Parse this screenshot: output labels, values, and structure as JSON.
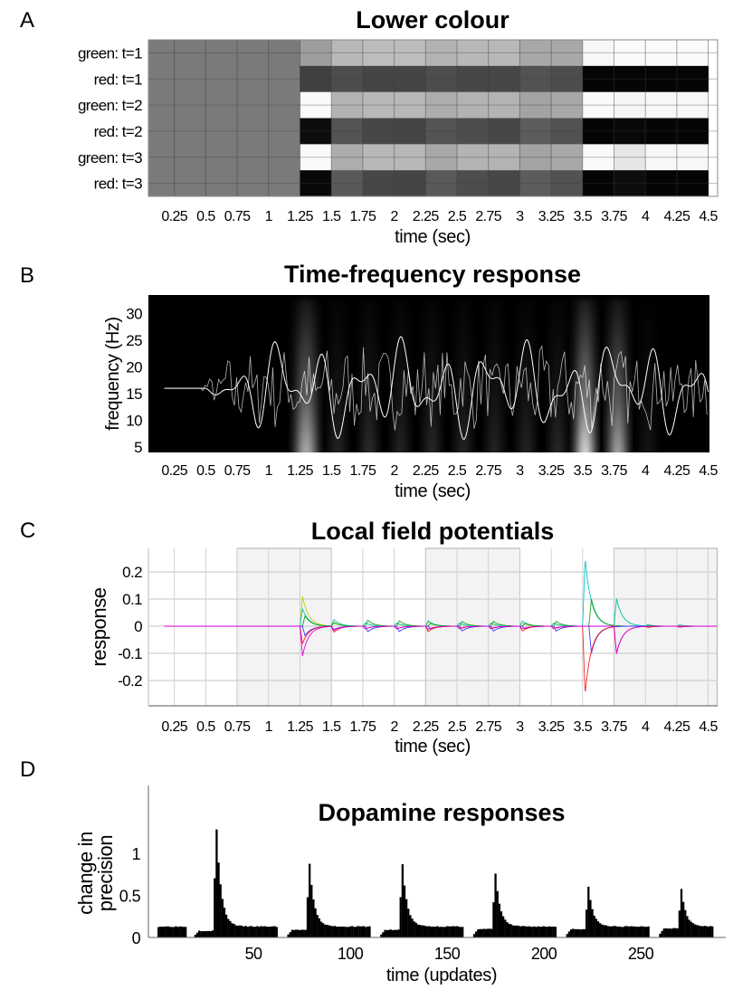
{
  "panels": [
    {
      "letter": "A"
    },
    {
      "letter": "B"
    },
    {
      "letter": "C"
    },
    {
      "letter": "D"
    }
  ],
  "chart_data": [
    {
      "panel": "A",
      "type": "heatmap",
      "title": "Lower colour",
      "xlabel": "time (sec)",
      "xlim": [
        0.17,
        4.57
      ],
      "xticks": [
        0.25,
        0.5,
        0.75,
        1,
        1.25,
        1.5,
        1.75,
        2,
        2.25,
        2.5,
        2.75,
        3,
        3.25,
        3.5,
        3.75,
        4,
        4.25,
        4.5
      ],
      "xtick_labels": [
        "0.25",
        "0.5",
        "0.75",
        "1",
        "1.25",
        "1.5",
        "1.75",
        "2",
        "2.25",
        "2.5",
        "2.75",
        "3",
        "3.25",
        "3.5",
        "3.75",
        "4",
        "4.25",
        "4.5"
      ],
      "bin_width_sec": 0.25,
      "rows": [
        "green: t=1",
        "red: t=1",
        "green: t=2",
        "red: t=2",
        "green: t=3",
        "red: t=3"
      ],
      "values": [
        [
          0.48,
          0.48,
          0.48,
          0.48,
          0.48,
          0.62,
          0.72,
          0.74,
          0.74,
          0.7,
          0.72,
          0.72,
          0.66,
          0.66,
          0.97,
          0.98,
          0.98,
          0.98
        ],
        [
          0.48,
          0.48,
          0.48,
          0.48,
          0.48,
          0.25,
          0.3,
          0.27,
          0.27,
          0.3,
          0.28,
          0.28,
          0.32,
          0.3,
          0.02,
          0.02,
          0.02,
          0.02
        ],
        [
          0.48,
          0.48,
          0.48,
          0.48,
          0.48,
          0.98,
          0.7,
          0.72,
          0.72,
          0.68,
          0.7,
          0.7,
          0.64,
          0.66,
          0.98,
          0.96,
          0.97,
          0.97
        ],
        [
          0.48,
          0.48,
          0.48,
          0.48,
          0.48,
          0.05,
          0.33,
          0.28,
          0.27,
          0.33,
          0.3,
          0.28,
          0.36,
          0.32,
          0.02,
          0.03,
          0.02,
          0.02
        ],
        [
          0.48,
          0.48,
          0.48,
          0.48,
          0.48,
          0.98,
          0.68,
          0.72,
          0.72,
          0.66,
          0.7,
          0.7,
          0.64,
          0.66,
          0.98,
          0.9,
          0.97,
          0.97
        ],
        [
          0.48,
          0.48,
          0.48,
          0.48,
          0.48,
          0.03,
          0.35,
          0.28,
          0.27,
          0.35,
          0.3,
          0.28,
          0.36,
          0.32,
          0.02,
          0.05,
          0.02,
          0.02
        ]
      ]
    },
    {
      "panel": "B",
      "type": "heatmap",
      "title": "Time-frequency response",
      "xlabel": "time (sec)",
      "ylabel": "frequency (Hz)",
      "xlim": [
        0.17,
        4.5
      ],
      "ylim": [
        3,
        33
      ],
      "yticks": [
        5,
        10,
        15,
        20,
        25,
        30
      ],
      "xticks": [
        0.25,
        0.5,
        0.75,
        1,
        1.25,
        1.5,
        1.75,
        2,
        2.25,
        2.5,
        2.75,
        3,
        3.25,
        3.5,
        3.75,
        4,
        4.25,
        4.5
      ],
      "xtick_labels": [
        "0.25",
        "0.5",
        "0.75",
        "1",
        "1.25",
        "1.5",
        "1.75",
        "2",
        "2.25",
        "2.5",
        "2.75",
        "3",
        "3.25",
        "3.5",
        "3.75",
        "4",
        "4.25",
        "4.5"
      ],
      "power_blobs": [
        {
          "t": 1.3,
          "intensity": 0.75,
          "spread": 0.07
        },
        {
          "t": 1.55,
          "intensity": 0.18,
          "spread": 0.05
        },
        {
          "t": 1.8,
          "intensity": 0.22,
          "spread": 0.05
        },
        {
          "t": 2.05,
          "intensity": 0.18,
          "spread": 0.05
        },
        {
          "t": 2.3,
          "intensity": 0.2,
          "spread": 0.05
        },
        {
          "t": 2.55,
          "intensity": 0.18,
          "spread": 0.05
        },
        {
          "t": 2.8,
          "intensity": 0.18,
          "spread": 0.05
        },
        {
          "t": 3.05,
          "intensity": 0.18,
          "spread": 0.05
        },
        {
          "t": 3.3,
          "intensity": 0.2,
          "spread": 0.05
        },
        {
          "t": 3.52,
          "intensity": 1.0,
          "spread": 0.06
        },
        {
          "t": 3.78,
          "intensity": 0.75,
          "spread": 0.06
        },
        {
          "t": 4.02,
          "intensity": 0.1,
          "spread": 0.05
        }
      ],
      "overlay_baseline_hz": 16
    },
    {
      "panel": "C",
      "type": "line",
      "title": "Local field potentials",
      "xlabel": "time (sec)",
      "ylabel": "response",
      "xlim": [
        0.17,
        4.57
      ],
      "ylim": [
        -0.28,
        0.28
      ],
      "yticks": [
        -0.2,
        -0.1,
        0,
        0.1,
        0.2
      ],
      "ytick_labels": [
        "-0.2",
        "-0.1",
        "0",
        "0.1",
        "0.2"
      ],
      "xticks": [
        0.25,
        0.5,
        0.75,
        1,
        1.25,
        1.5,
        1.75,
        2,
        2.25,
        2.5,
        2.75,
        3,
        3.25,
        3.5,
        3.75,
        4,
        4.25,
        4.5
      ],
      "xtick_labels": [
        "0.25",
        "0.5",
        "0.75",
        "1",
        "1.25",
        "1.5",
        "1.75",
        "2",
        "2.25",
        "2.5",
        "2.75",
        "3",
        "3.25",
        "3.5",
        "3.75",
        "4",
        "4.25",
        "4.5"
      ],
      "shaded_intervals": [
        [
          0.75,
          1.5
        ],
        [
          2.25,
          3.0
        ],
        [
          3.75,
          4.57
        ]
      ],
      "series": [
        {
          "name": "yellow",
          "color": "#cccc00",
          "events": [
            [
              1.25,
              0.11
            ],
            [
              1.5,
              0.015
            ],
            [
              1.75,
              0.012
            ],
            [
              2.0,
              0.01
            ],
            [
              2.25,
              0.015
            ],
            [
              2.5,
              0.01
            ],
            [
              2.75,
              0.01
            ],
            [
              3.0,
              0.012
            ],
            [
              3.25,
              0.01
            ],
            [
              3.75,
              0.1
            ],
            [
              4.0,
              0.004
            ],
            [
              4.25,
              0.004
            ]
          ]
        },
        {
          "name": "cyan",
          "color": "#00c8c8",
          "events": [
            [
              1.25,
              0.065
            ],
            [
              1.5,
              0.025
            ],
            [
              1.75,
              0.012
            ],
            [
              2.0,
              0.012
            ],
            [
              2.25,
              0.02
            ],
            [
              2.5,
              0.012
            ],
            [
              2.75,
              0.012
            ],
            [
              3.0,
              0.02
            ],
            [
              3.25,
              0.012
            ],
            [
              3.5,
              0.25
            ],
            [
              3.75,
              0.1
            ],
            [
              4.0,
              0.005
            ],
            [
              4.25,
              0.005
            ]
          ]
        },
        {
          "name": "green",
          "color": "#20a020",
          "events": [
            [
              1.27,
              0.038
            ],
            [
              1.5,
              0.012
            ],
            [
              1.77,
              0.022
            ],
            [
              2.02,
              0.02
            ],
            [
              2.27,
              0.01
            ],
            [
              2.52,
              0.018
            ],
            [
              2.77,
              0.018
            ],
            [
              3.02,
              0.01
            ],
            [
              3.27,
              0.018
            ],
            [
              3.55,
              0.1
            ],
            [
              4.0,
              0.003
            ]
          ]
        },
        {
          "name": "blue",
          "color": "#3a3aff",
          "events": [
            [
              1.27,
              -0.035
            ],
            [
              1.5,
              -0.012
            ],
            [
              1.77,
              -0.02
            ],
            [
              2.02,
              -0.02
            ],
            [
              2.27,
              -0.01
            ],
            [
              2.52,
              -0.018
            ],
            [
              2.77,
              -0.018
            ],
            [
              3.02,
              -0.01
            ],
            [
              3.27,
              -0.018
            ],
            [
              3.55,
              -0.1
            ],
            [
              4.0,
              -0.004
            ],
            [
              4.25,
              -0.004
            ]
          ]
        },
        {
          "name": "red",
          "color": "#ff2020",
          "events": [
            [
              1.25,
              -0.065
            ],
            [
              1.5,
              -0.022
            ],
            [
              1.75,
              -0.01
            ],
            [
              2.0,
              -0.01
            ],
            [
              2.25,
              -0.02
            ],
            [
              2.5,
              -0.01
            ],
            [
              2.75,
              -0.01
            ],
            [
              3.0,
              -0.018
            ],
            [
              3.25,
              -0.01
            ],
            [
              3.5,
              -0.25
            ],
            [
              3.75,
              -0.1
            ],
            [
              4.0,
              -0.004
            ]
          ]
        },
        {
          "name": "magenta",
          "color": "#e000e0",
          "events": [
            [
              1.25,
              -0.11
            ],
            [
              1.5,
              -0.015
            ],
            [
              1.75,
              -0.01
            ],
            [
              2.0,
              -0.01
            ],
            [
              2.25,
              -0.012
            ],
            [
              2.5,
              -0.008
            ],
            [
              2.75,
              -0.008
            ],
            [
              3.0,
              -0.01
            ],
            [
              3.25,
              -0.008
            ],
            [
              3.75,
              -0.1
            ],
            [
              4.25,
              -0.004
            ]
          ]
        }
      ]
    },
    {
      "panel": "D",
      "type": "bar",
      "title": "Dopamine responses",
      "xlabel": "time (updates)",
      "ylabel": [
        "change in",
        "precision"
      ],
      "xlim": [
        0,
        288
      ],
      "ylim": [
        0,
        1.35
      ],
      "xticks": [
        50,
        100,
        150,
        200,
        250
      ],
      "xtick_labels": [
        "50",
        "100",
        "150",
        "200",
        "250"
      ],
      "yticks": [
        0,
        0.5,
        1
      ],
      "ytick_labels": [
        "0",
        "0.5",
        "1"
      ],
      "initial_segment": {
        "start": 1,
        "end": 15,
        "level": 0.13
      },
      "trials": [
        {
          "start": 20,
          "spike_at": 31,
          "end": 62,
          "pre_level": 0.08,
          "peak": 1.28,
          "post_level": 0.13
        },
        {
          "start": 68,
          "spike_at": 79,
          "end": 110,
          "pre_level": 0.09,
          "peak": 0.87,
          "post_level": 0.13
        },
        {
          "start": 116,
          "spike_at": 127,
          "end": 158,
          "pre_level": 0.09,
          "peak": 0.87,
          "post_level": 0.13
        },
        {
          "start": 164,
          "spike_at": 175,
          "end": 206,
          "pre_level": 0.1,
          "peak": 0.76,
          "post_level": 0.13
        },
        {
          "start": 212,
          "spike_at": 223,
          "end": 254,
          "pre_level": 0.1,
          "peak": 0.6,
          "post_level": 0.13
        },
        {
          "start": 260,
          "spike_at": 271,
          "end": 287,
          "pre_level": 0.11,
          "peak": 0.58,
          "post_level": 0.13
        }
      ]
    }
  ]
}
